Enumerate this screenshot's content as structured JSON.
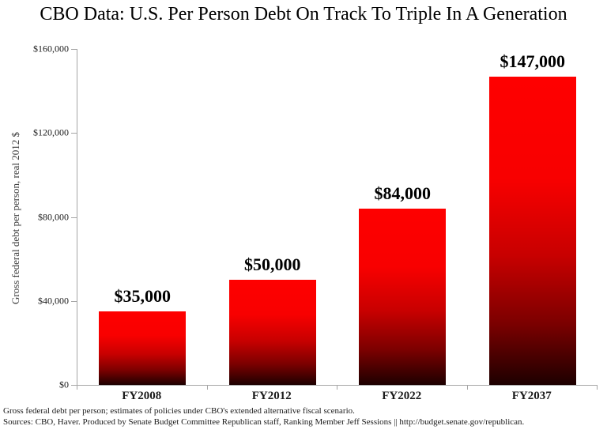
{
  "title": "CBO Data: U.S. Per Person Debt On Track To Triple In A Generation",
  "chart_data": {
    "type": "bar",
    "title": "CBO Data: U.S. Per Person Debt On Track To Triple In A Generation",
    "categories": [
      "FY2008",
      "FY2012",
      "FY2022",
      "FY2037"
    ],
    "values": [
      35000,
      50000,
      84000,
      147000
    ],
    "value_labels": [
      "$35,000",
      "$50,000",
      "$84,000",
      "$147,000"
    ],
    "xlabel": "",
    "ylabel": "Gross federal debt per person, real 2012 $",
    "ylim": [
      0,
      160000
    ],
    "ytick_values": [
      0,
      40000,
      80000,
      120000,
      160000
    ],
    "ytick_labels": [
      "$0",
      "$40,000",
      "$80,000",
      "$120,000",
      "$160,000"
    ],
    "grid": false,
    "legend": "none",
    "bar_color_top": "#fe0000",
    "bar_color_bottom": "#1d0000",
    "axis_color": "#a6a6a6"
  },
  "footer": {
    "line1": "Gross federal debt per person; estimates of policies under CBO's extended alternative fiscal scenario.",
    "line2": "Sources: CBO, Haver. Produced by Senate Budget Committee Republican staff, Ranking Member Jeff Sessions || http://budget.senate.gov/republican."
  }
}
